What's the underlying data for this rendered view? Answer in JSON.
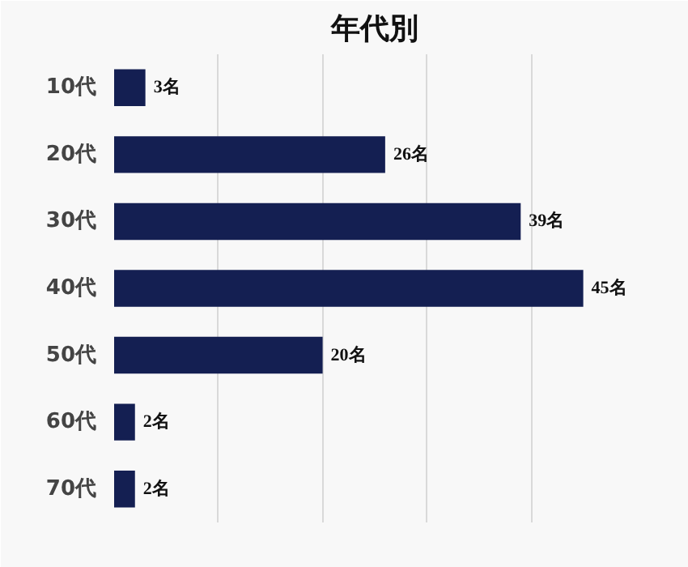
{
  "chart_data": {
    "type": "bar",
    "orientation": "horizontal",
    "title": "年代別",
    "categories": [
      "10代",
      "20代",
      "30代",
      "40代",
      "50代",
      "60代",
      "70代"
    ],
    "values": [
      3,
      26,
      39,
      45,
      20,
      2,
      2
    ],
    "value_labels": [
      "3名",
      "26名",
      "39名",
      "45名",
      "20名",
      "2名",
      "2名"
    ],
    "color": "#141f52",
    "xlim": [
      0,
      50
    ],
    "xticks": [
      {
        "value": 0,
        "label": null
      },
      {
        "value": 10,
        "label": null
      },
      {
        "value": 20,
        "label": null
      },
      {
        "value": 30,
        "label": null
      },
      {
        "value": 40,
        "label": null
      },
      {
        "value": 50,
        "label": null
      }
    ],
    "grid": "x",
    "tick_labels": "y"
  }
}
